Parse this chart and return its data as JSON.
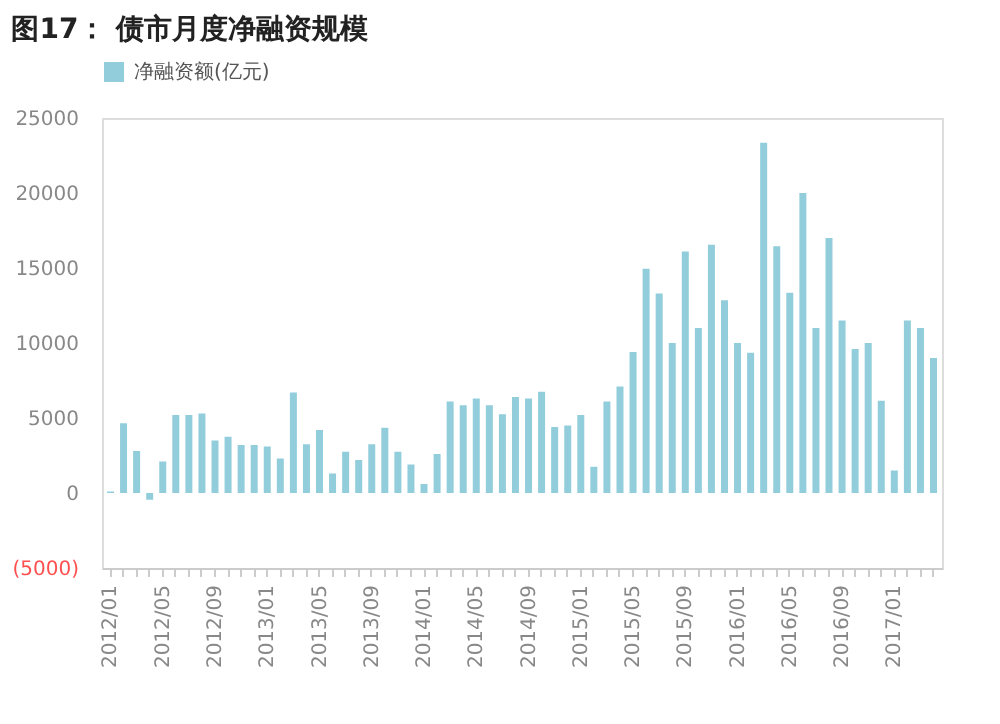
{
  "chart_data": {
    "type": "bar",
    "title": "图17： 债市月度净融资规模",
    "categories": [
      "2012/01",
      null,
      null,
      null,
      "2012/05",
      null,
      null,
      null,
      "2012/09",
      null,
      null,
      null,
      "2013/01",
      null,
      null,
      null,
      "2013/05",
      null,
      null,
      null,
      "2013/09",
      null,
      null,
      null,
      "2014/01",
      null,
      null,
      null,
      "2014/05",
      null,
      null,
      null,
      "2014/09",
      null,
      null,
      null,
      "2015/01",
      null,
      null,
      null,
      "2015/05",
      null,
      null,
      null,
      "2015/09",
      null,
      null,
      null,
      "2016/01",
      null,
      null,
      null,
      "2016/05",
      null,
      null,
      null,
      "2016/09",
      null,
      null,
      null,
      "2017/01",
      null,
      null,
      null
    ],
    "series": [
      {
        "name": "净融资额(亿元)",
        "color": "#92cddc",
        "values": [
          100,
          4650,
          2800,
          -450,
          2100,
          5200,
          5200,
          5300,
          3500,
          3750,
          3200,
          3200,
          3100,
          2300,
          6700,
          3250,
          4200,
          1300,
          2750,
          2200,
          3250,
          4350,
          2750,
          1900,
          600,
          2600,
          6100,
          5850,
          6300,
          5850,
          5250,
          6400,
          6300,
          6750,
          4400,
          4500,
          5200,
          1750,
          6100,
          7100,
          9400,
          14950,
          13300,
          10000,
          16100,
          11000,
          16550,
          12850,
          10000,
          9350,
          23350,
          16450,
          13350,
          20000,
          11000,
          17000,
          11500,
          9600,
          10000,
          6150,
          1500,
          11500,
          11000,
          9000
        ]
      }
    ],
    "ylim": [
      -5000,
      25000
    ],
    "yticks": [
      {
        "value": -5000,
        "label": "(5000)"
      },
      0,
      5000,
      10000,
      15000,
      20000,
      25000
    ],
    "legend": "top",
    "grid": false
  }
}
